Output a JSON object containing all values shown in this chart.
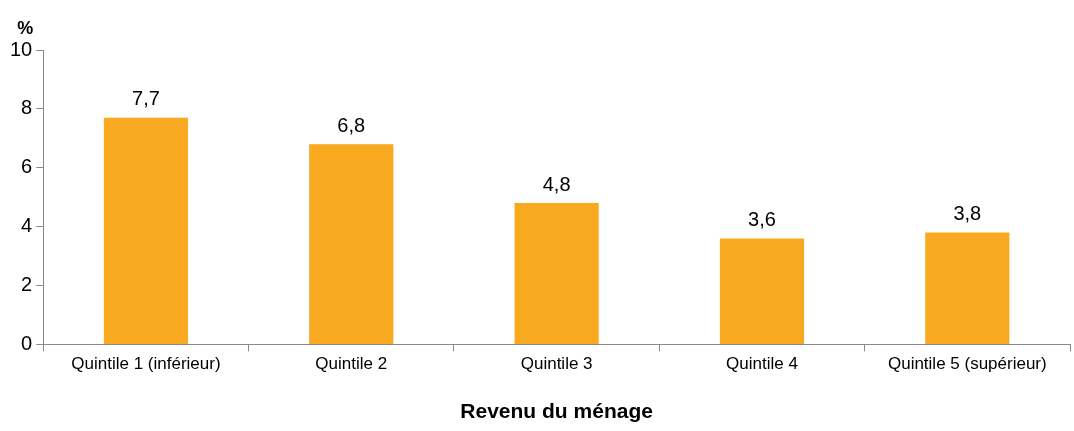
{
  "chart_data": {
    "type": "bar",
    "ylabel": "%",
    "xlabel": "Revenu du ménage",
    "categories": [
      "Quintile 1 (inférieur)",
      "Quintile 2",
      "Quintile 3",
      "Quintile 4",
      "Quintile 5 (supérieur)"
    ],
    "values": [
      7.7,
      6.8,
      4.8,
      3.6,
      3.8
    ],
    "color": "#f9a91f",
    "value_labels": [
      "7,7",
      "6,8",
      "4,8",
      "3,6",
      "3,8"
    ],
    "ylim": [
      0,
      10
    ],
    "yticks": [
      0,
      2,
      4,
      6,
      8,
      10
    ],
    "grid": false
  }
}
